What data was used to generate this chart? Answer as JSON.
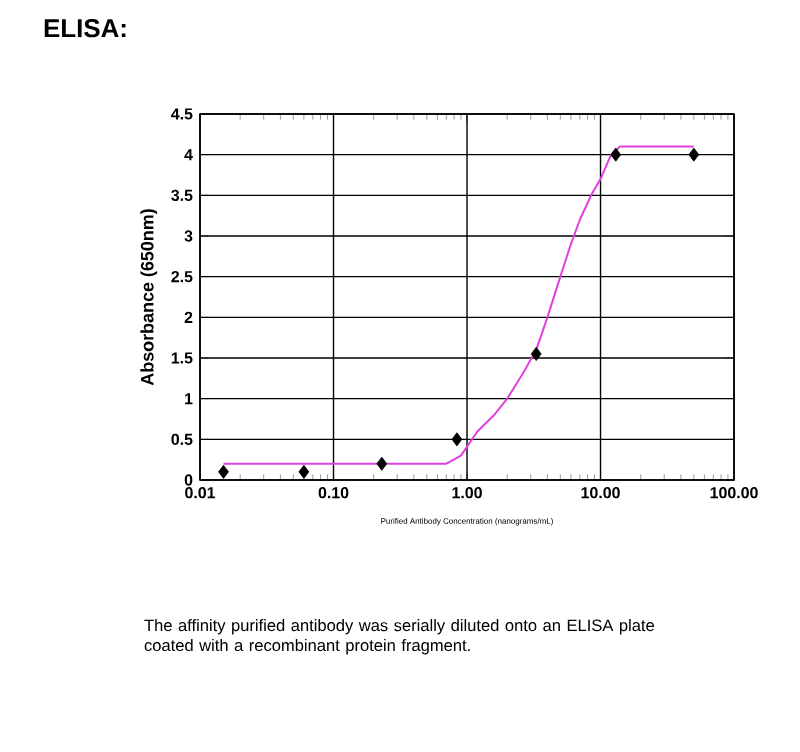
{
  "chart_data": {
    "type": "scatter",
    "title": "ELISA:",
    "xlabel": "Purified Antibody Concentration (nanograms/mL)",
    "ylabel": "Absorbance (650nm)",
    "annotations": [
      "The affinity purified antibody was serially diluted onto an ELISA plate coated with a recombinant protein fragment."
    ],
    "log": "x",
    "grid": true,
    "xlim": [
      0.01,
      100
    ],
    "xticks": [
      {
        "value": 0.01,
        "label": "0.01"
      },
      {
        "value": 0.1,
        "label": "0.10"
      },
      {
        "value": 1,
        "label": "1.00"
      },
      {
        "value": 10,
        "label": "10.00"
      },
      {
        "value": 100,
        "label": "100.00"
      }
    ],
    "ylim": [
      0,
      4.5
    ],
    "yticks": [
      0,
      0.5,
      1,
      1.5,
      2,
      2.5,
      3,
      3.5,
      4,
      4.5
    ],
    "series": [
      {
        "color": "#000000",
        "marker": "diamond",
        "x": [
          0.015,
          0.06,
          0.23,
          0.84,
          3.3,
          13,
          50
        ],
        "values": [
          0.1,
          0.1,
          0.2,
          0.5,
          1.55,
          4.0,
          4.0
        ]
      },
      {
        "type": "line",
        "color": "#e040e0",
        "x": [
          0.015,
          0.1,
          0.3,
          0.5,
          0.7,
          0.9,
          1.2,
          1.6,
          2,
          2.6,
          3.3,
          4,
          5,
          6,
          7,
          8.5,
          10,
          12,
          14,
          17,
          20,
          30,
          50
        ],
        "values": [
          0.2,
          0.2,
          0.2,
          0.2,
          0.2,
          0.3,
          0.6,
          0.8,
          1.0,
          1.3,
          1.6,
          2.0,
          2.5,
          2.9,
          3.2,
          3.5,
          3.7,
          4.0,
          4.1,
          4.1,
          4.1,
          4.1,
          4.1
        ]
      }
    ]
  }
}
